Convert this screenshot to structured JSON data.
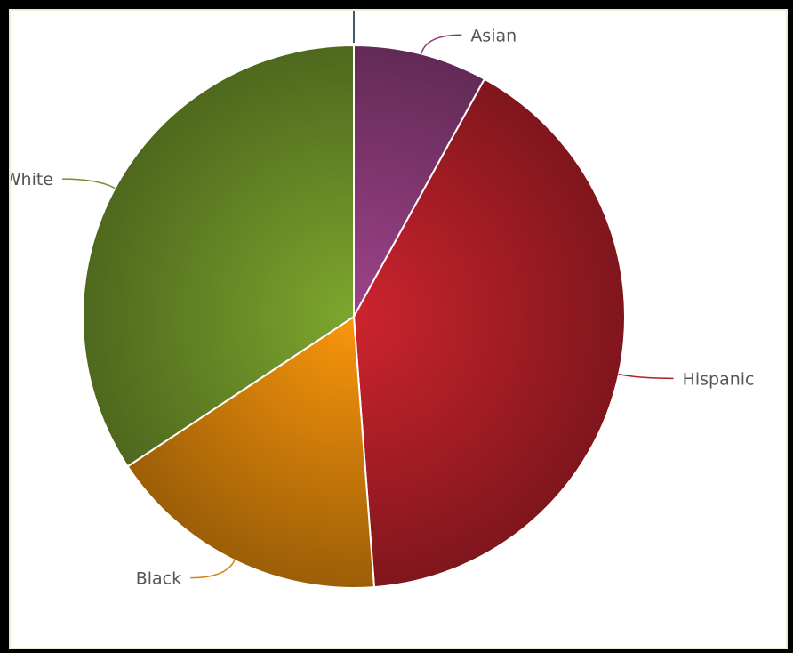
{
  "chart_data": {
    "type": "pie",
    "title": "",
    "slices": [
      {
        "label": "Asian",
        "value": 8.0,
        "color": "#8a3a78"
      },
      {
        "label": "Hispanic",
        "value": 40.8,
        "color": "#b21f28"
      },
      {
        "label": "Black",
        "value": 16.9,
        "color": "#d9820a"
      },
      {
        "label": "White",
        "value": 34.3,
        "color": "#6d9128"
      }
    ],
    "legend": "none"
  }
}
